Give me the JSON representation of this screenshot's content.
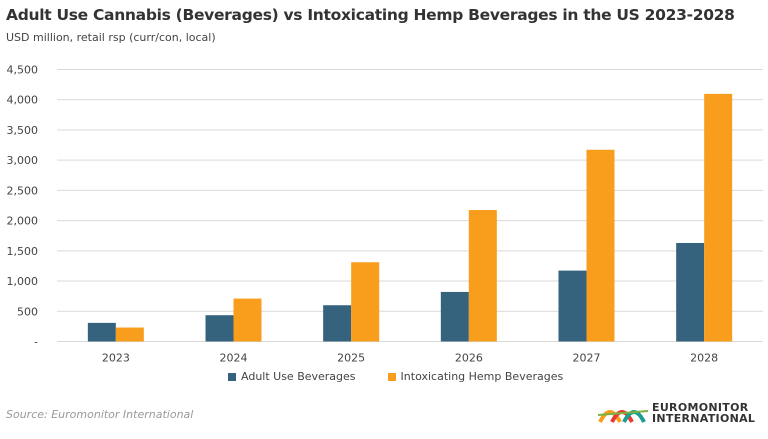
{
  "chart_data": {
    "type": "bar",
    "title": "Adult Use Cannabis (Beverages) vs Intoxicating Hemp Beverages in the US 2023-2028",
    "subtitle": "USD million, retail rsp (curr/con, local)",
    "categories": [
      "2023",
      "2024",
      "2025",
      "2026",
      "2027",
      "2028"
    ],
    "series": [
      {
        "name": "Adult Use Beverages",
        "color": "#35637d",
        "values": [
          308,
          435,
          600,
          820,
          1173,
          1630
        ]
      },
      {
        "name": "Intoxicating Hemp Beverages",
        "color": "#f99d1c",
        "values": [
          231,
          710,
          1311,
          2175,
          3172,
          4097
        ]
      }
    ],
    "ylim": [
      0,
      4500
    ],
    "yticks": [
      0,
      500,
      1000,
      1500,
      2000,
      2500,
      3000,
      3500,
      4000,
      4500
    ],
    "ytick_labels": [
      "-",
      "500",
      "1,000",
      "1,500",
      "2,000",
      "2,500",
      "3,000",
      "3,500",
      "4,000",
      "4,500"
    ],
    "grid": true,
    "legend": "bottom"
  },
  "source": "Source: Euromonitor International",
  "logo": {
    "line1": "EUROMONITOR",
    "line2": "INTERNATIONAL"
  }
}
